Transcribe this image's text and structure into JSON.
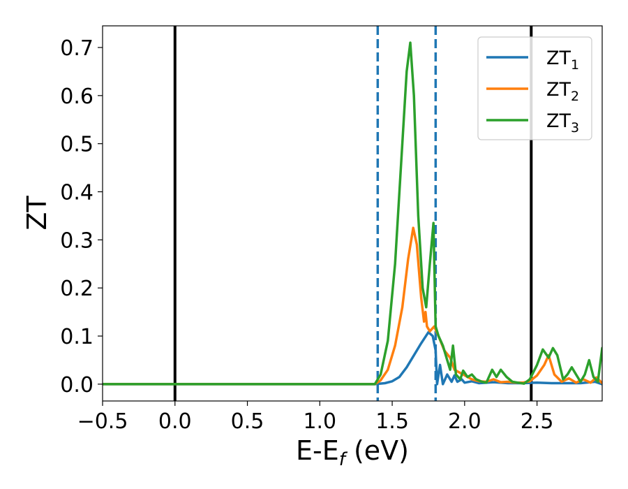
{
  "chart_data": {
    "type": "line",
    "xlabel_main": "E-E",
    "xlabel_sub": "f",
    "xlabel_unit": " (eV)",
    "ylabel": "ZT",
    "xlim": [
      -0.5,
      2.95
    ],
    "ylim": [
      -0.035,
      0.745
    ],
    "grid": false,
    "legend_position": "top-right",
    "x_ticks": [
      -0.5,
      0.0,
      0.5,
      1.0,
      1.5,
      2.0,
      2.5
    ],
    "x_tick_labels": [
      "−0.5",
      "0.0",
      "0.5",
      "1.0",
      "1.5",
      "2.0",
      "2.5"
    ],
    "y_ticks": [
      0.0,
      0.1,
      0.2,
      0.3,
      0.4,
      0.5,
      0.6,
      0.7
    ],
    "y_tick_labels": [
      "0.0",
      "0.1",
      "0.2",
      "0.3",
      "0.4",
      "0.5",
      "0.6",
      "0.7"
    ],
    "vertical_lines": [
      {
        "x": 0.0,
        "style": "solid",
        "color": "#000000"
      },
      {
        "x": 2.46,
        "style": "solid",
        "color": "#000000"
      },
      {
        "x": 1.4,
        "style": "dashed",
        "color": "#1f77b4"
      },
      {
        "x": 1.8,
        "style": "dashed",
        "color": "#1f77b4"
      }
    ],
    "series": [
      {
        "name": "ZT",
        "sub": "1",
        "color": "#1f77b4",
        "x": [
          -0.5,
          1.38,
          1.45,
          1.5,
          1.55,
          1.6,
          1.65,
          1.7,
          1.75,
          1.78,
          1.8,
          1.81,
          1.83,
          1.85,
          1.88,
          1.91,
          1.93,
          1.95,
          1.98,
          2.0,
          2.05,
          2.1,
          2.2,
          2.3,
          2.4,
          2.5,
          2.6,
          2.7,
          2.8,
          2.9,
          2.95
        ],
        "y": [
          0.0,
          0.0,
          0.002,
          0.006,
          0.015,
          0.035,
          0.06,
          0.085,
          0.108,
          0.1,
          0.07,
          0.0,
          0.04,
          0.0,
          0.02,
          0.005,
          0.018,
          0.005,
          0.01,
          0.003,
          0.006,
          0.002,
          0.004,
          0.002,
          0.002,
          0.003,
          0.002,
          0.002,
          0.002,
          0.005,
          0.0
        ]
      },
      {
        "name": "ZT",
        "sub": "2",
        "color": "#ff7f0e",
        "x": [
          -0.5,
          1.38,
          1.42,
          1.47,
          1.52,
          1.57,
          1.61,
          1.645,
          1.67,
          1.7,
          1.72,
          1.73,
          1.74,
          1.76,
          1.79,
          1.82,
          1.86,
          1.9,
          1.93,
          1.96,
          1.99,
          2.02,
          2.05,
          2.1,
          2.15,
          2.2,
          2.25,
          2.3,
          2.35,
          2.4,
          2.45,
          2.5,
          2.55,
          2.58,
          2.62,
          2.67,
          2.72,
          2.77,
          2.82,
          2.87,
          2.91,
          2.95
        ],
        "y": [
          0.0,
          0.0,
          0.008,
          0.03,
          0.08,
          0.16,
          0.26,
          0.325,
          0.29,
          0.18,
          0.13,
          0.15,
          0.12,
          0.11,
          0.12,
          0.1,
          0.07,
          0.055,
          0.03,
          0.025,
          0.02,
          0.015,
          0.01,
          0.006,
          0.005,
          0.01,
          0.004,
          0.005,
          0.003,
          0.003,
          0.006,
          0.018,
          0.04,
          0.06,
          0.02,
          0.005,
          0.012,
          0.003,
          0.01,
          0.003,
          0.014,
          0.002
        ]
      },
      {
        "name": "ZT",
        "sub": "3",
        "color": "#2ca02c",
        "x": [
          -0.5,
          1.38,
          1.42,
          1.47,
          1.52,
          1.56,
          1.6,
          1.625,
          1.65,
          1.68,
          1.71,
          1.735,
          1.76,
          1.785,
          1.8,
          1.82,
          1.85,
          1.88,
          1.9,
          1.92,
          1.94,
          1.97,
          1.99,
          2.02,
          2.05,
          2.08,
          2.12,
          2.15,
          2.19,
          2.22,
          2.25,
          2.29,
          2.33,
          2.37,
          2.41,
          2.45,
          2.5,
          2.54,
          2.58,
          2.61,
          2.64,
          2.68,
          2.71,
          2.74,
          2.77,
          2.8,
          2.83,
          2.86,
          2.89,
          2.92,
          2.95
        ],
        "y": [
          0.0,
          0.0,
          0.02,
          0.09,
          0.25,
          0.45,
          0.65,
          0.71,
          0.6,
          0.35,
          0.2,
          0.16,
          0.25,
          0.335,
          0.12,
          0.1,
          0.08,
          0.05,
          0.03,
          0.08,
          0.02,
          0.01,
          0.028,
          0.015,
          0.02,
          0.01,
          0.005,
          0.003,
          0.03,
          0.015,
          0.03,
          0.015,
          0.005,
          0.003,
          0.001,
          0.01,
          0.04,
          0.072,
          0.055,
          0.075,
          0.06,
          0.01,
          0.02,
          0.035,
          0.02,
          0.005,
          0.02,
          0.05,
          0.015,
          0.005,
          0.075
        ]
      }
    ]
  }
}
